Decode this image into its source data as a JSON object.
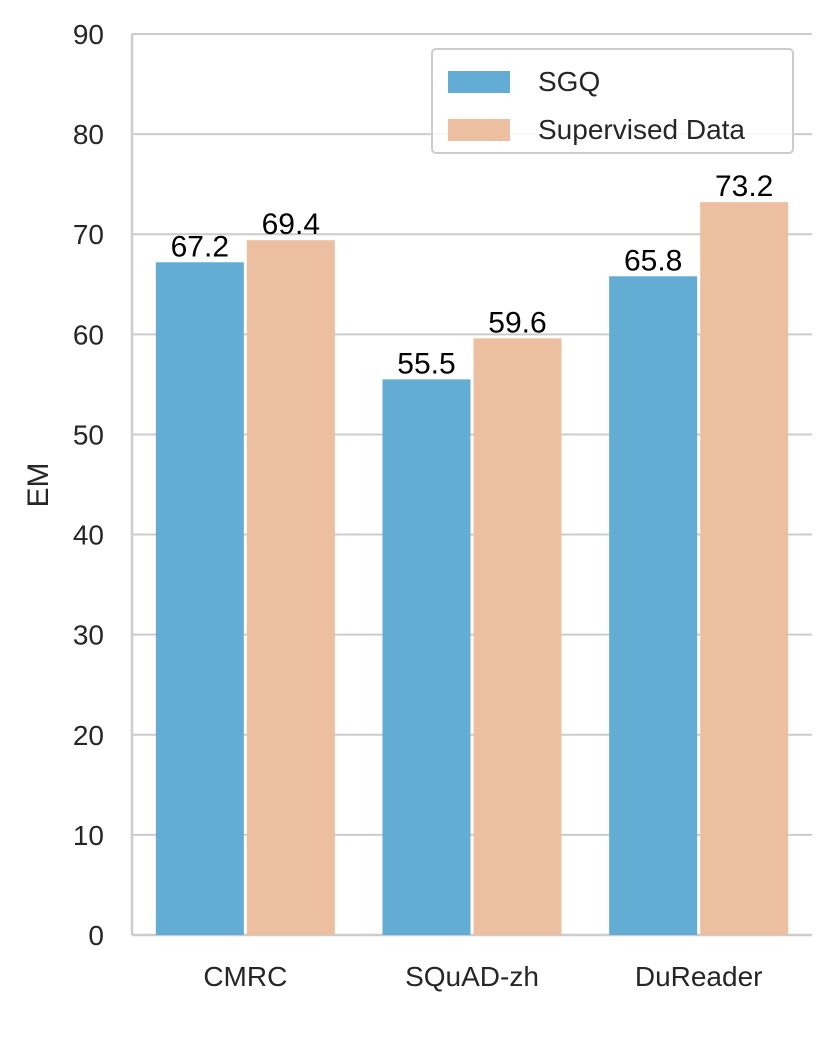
{
  "chart_data": {
    "type": "bar",
    "title": "",
    "xlabel": "",
    "ylabel": "EM",
    "ylim": [
      0,
      90
    ],
    "yticks": [
      0,
      10,
      20,
      30,
      40,
      50,
      60,
      70,
      80,
      90
    ],
    "grid": "horizontal",
    "legend_position": "top-right",
    "categories": [
      "CMRC",
      "SQuAD-zh",
      "DuReader"
    ],
    "series": [
      {
        "name": "SGQ",
        "color": "#63acd4",
        "values": [
          67.2,
          55.5,
          65.8
        ]
      },
      {
        "name": "Supervised Data",
        "color": "#ebbf9f",
        "values": [
          69.4,
          59.6,
          73.2
        ]
      }
    ],
    "data_labels": [
      [
        "67.2",
        "55.5",
        "65.8"
      ],
      [
        "69.4",
        "59.6",
        "73.2"
      ]
    ]
  }
}
